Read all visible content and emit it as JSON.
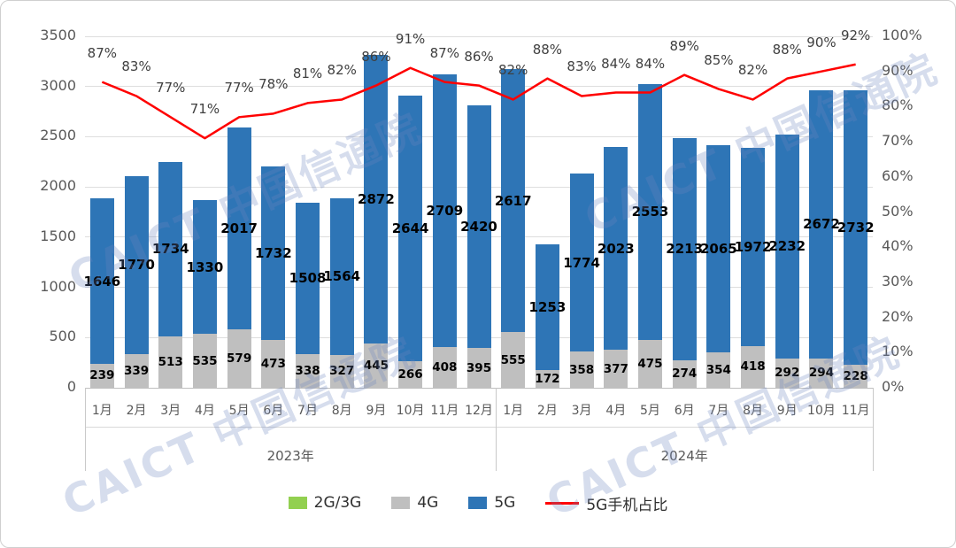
{
  "chart_data": {
    "type": "bar",
    "subtype": "stacked-bars-with-percentage-line",
    "categories": [
      "1月",
      "2月",
      "3月",
      "4月",
      "5月",
      "6月",
      "7月",
      "8月",
      "9月",
      "10月",
      "11月",
      "12月",
      "1月",
      "2月",
      "3月",
      "4月",
      "5月",
      "6月",
      "7月",
      "8月",
      "9月",
      "10月",
      "11月"
    ],
    "year_groups": [
      {
        "label": "2023年",
        "start": 0,
        "count": 12
      },
      {
        "label": "2024年",
        "start": 12,
        "count": 11
      }
    ],
    "series": [
      {
        "name": "2G/3G",
        "color": "#92d050",
        "values": [
          0,
          0,
          0,
          0,
          0,
          0,
          0,
          0,
          0,
          0,
          0,
          0,
          0,
          0,
          0,
          0,
          0,
          0,
          0,
          0,
          0,
          0,
          0
        ]
      },
      {
        "name": "4G",
        "color": "#bfbfbf",
        "values": [
          239,
          339,
          513,
          535,
          579,
          473,
          338,
          327,
          445,
          266,
          408,
          395,
          555,
          172,
          358,
          377,
          475,
          274,
          354,
          418,
          292,
          294,
          228
        ]
      },
      {
        "name": "5G",
        "color": "#2e75b6",
        "values": [
          1646,
          1770,
          1734,
          1330,
          2017,
          1732,
          1508,
          1564,
          2872,
          2644,
          2709,
          2420,
          2617,
          1253,
          1774,
          2023,
          2553,
          2213,
          2065,
          1972,
          2232,
          2672,
          2732
        ]
      }
    ],
    "line_series": {
      "name": "5G手机占比",
      "color": "#ff0000",
      "unit": "%",
      "values": [
        87,
        83,
        77,
        71,
        77,
        78,
        81,
        82,
        86,
        91,
        87,
        86,
        82,
        88,
        83,
        84,
        84,
        89,
        85,
        82,
        88,
        90,
        92
      ]
    },
    "left_axis": {
      "min": 0,
      "max": 3500,
      "step": 500
    },
    "right_axis": {
      "min": 0,
      "max": 100,
      "step": 10,
      "suffix": "%"
    },
    "grid": true,
    "legend_position": "bottom",
    "watermark": "CAICT 中国信通院"
  },
  "legend": {
    "items": [
      {
        "label": "2G/3G",
        "color": "#92d050",
        "marker": "rect"
      },
      {
        "label": "4G",
        "color": "#bfbfbf",
        "marker": "rect"
      },
      {
        "label": "5G",
        "color": "#2e75b6",
        "marker": "rect"
      },
      {
        "label": "5G手机占比",
        "color": "#ff0000",
        "marker": "line"
      }
    ]
  }
}
